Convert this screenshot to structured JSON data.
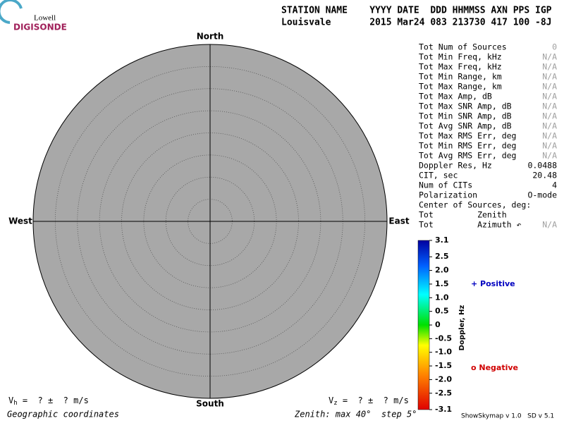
{
  "logo": {
    "top": "Lowell",
    "bottom": "DIGISONDE"
  },
  "header": {
    "line1": "STATION NAME    YYYY DATE  DDD HHMMSS AXN PPS IGP",
    "line2": "Louisvale       2015 Mar24 083 213730 417 100 -8J"
  },
  "skymap": {
    "north": "North",
    "south": "South",
    "west": "West",
    "east": "East"
  },
  "stats": {
    "rows": [
      {
        "label": "Tot Num of Sources",
        "value": "0",
        "color": "#a0a0a0"
      },
      {
        "label": "Tot Min Freq, kHz",
        "value": "N/A",
        "color": "#a0a0a0"
      },
      {
        "label": "Tot Max Freq, kHz",
        "value": "N/A",
        "color": "#a0a0a0"
      },
      {
        "label": "Tot Min Range, km",
        "value": "N/A",
        "color": "#a0a0a0"
      },
      {
        "label": "Tot Max Range, km",
        "value": "N/A",
        "color": "#a0a0a0"
      },
      {
        "label": "Tot Max Amp, dB",
        "value": "N/A",
        "color": "#a0a0a0"
      },
      {
        "label": "Tot Max SNR Amp, dB",
        "value": "N/A",
        "color": "#a0a0a0"
      },
      {
        "label": "Tot Min SNR Amp, dB",
        "value": "N/A",
        "color": "#a0a0a0"
      },
      {
        "label": "Tot Avg SNR Amp, dB",
        "value": "N/A",
        "color": "#a0a0a0"
      },
      {
        "label": "Tot Max RMS Err, deg",
        "value": "N/A",
        "color": "#a0a0a0"
      },
      {
        "label": "Tot Min RMS Err, deg",
        "value": "N/A",
        "color": "#a0a0a0"
      },
      {
        "label": "Tot Avg RMS Err, deg",
        "value": "N/A",
        "color": "#a0a0a0"
      },
      {
        "label": "Doppler Res, Hz",
        "value": "0.0488",
        "color": "#000000"
      },
      {
        "label": "CIT, sec",
        "value": "20.48",
        "color": "#000000"
      },
      {
        "label": "Num of CITs",
        "value": "4",
        "color": "#000000"
      },
      {
        "label": "Polarization",
        "value": "O-mode",
        "color": "#000000"
      },
      {
        "label": "Center of Sources, deg:"
      },
      {
        "label": "Tot         Zenith"
      },
      {
        "label": "Tot         Azimuth ↶",
        "value": "N/A",
        "color": "#a0a0a0"
      }
    ]
  },
  "colorbar": {
    "title": "Doppler, Hz",
    "ticks": [
      {
        "value": 3.1,
        "label": "3.1"
      },
      {
        "value": 2.5,
        "label": "2.5"
      },
      {
        "value": 2,
        "label": "2.0"
      },
      {
        "value": 1.5,
        "label": "1.5"
      },
      {
        "value": 1,
        "label": "1.0"
      },
      {
        "value": 0.5,
        "label": "0.5"
      },
      0,
      {
        "value": -0.5,
        "label": "-0.5"
      },
      {
        "value": -1,
        "label": "-1.0"
      },
      {
        "value": -1.5,
        "label": "-1.5"
      },
      {
        "value": -2,
        "label": "-2.0"
      },
      {
        "value": -2.5,
        "label": "-2.5"
      },
      {
        "value": -3.1,
        "label": "-3.1"
      }
    ]
  },
  "legend": {
    "positive": "+ Positive",
    "negative": "o Negative"
  },
  "footer": {
    "vh": {
      "symbol": "V",
      "subscript": "h",
      "text": " =  ? ±  ? m/s"
    },
    "vz": {
      "symbol": "V",
      "subscript": "z",
      "text": " =  ? ±  ? m/s"
    },
    "coordinates": "Geographic coordinates",
    "zenith": "Zenith: max 40°  step 5°",
    "version": "ShowSkymap v 1.0   SD v 5.1"
  }
}
